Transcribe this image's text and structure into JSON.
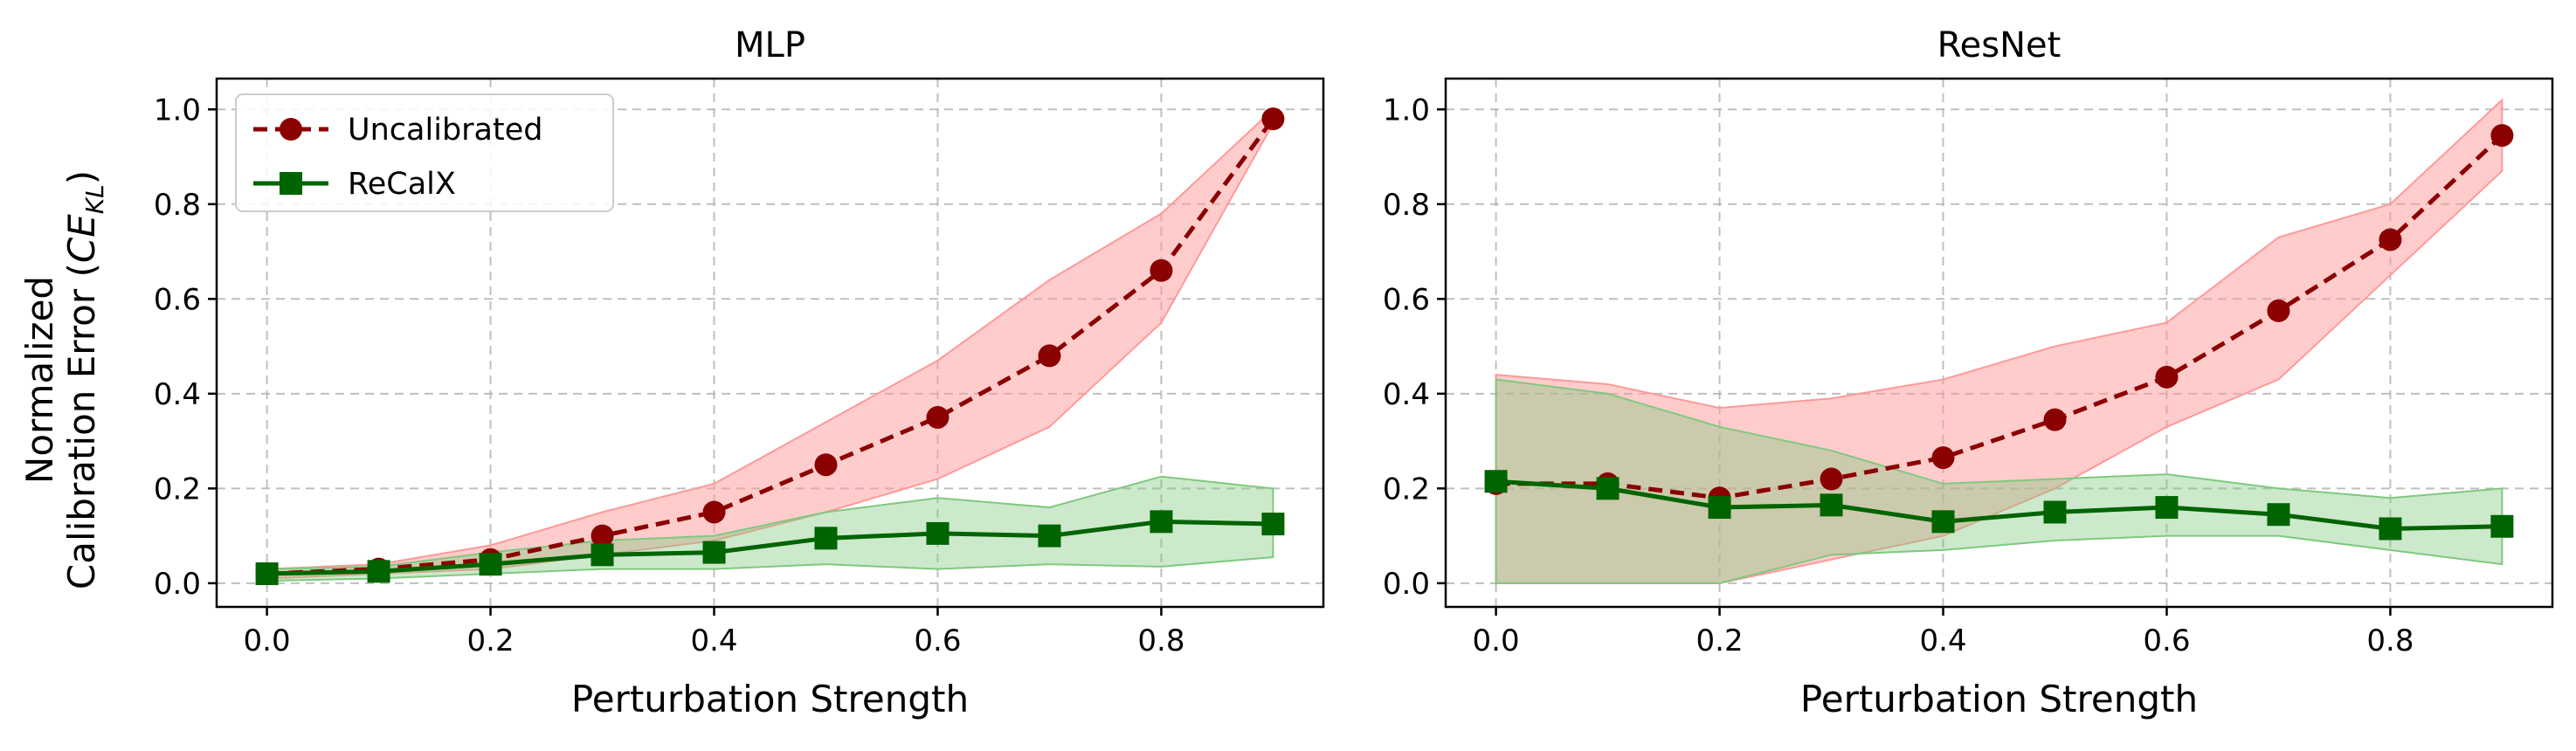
{
  "figure": {
    "ylabel_line1": "Normalized",
    "ylabel_line2": "Calibration Error (",
    "ylabel_ce": "CE",
    "ylabel_sub": "KL",
    "ylabel_close": ")"
  },
  "legend": {
    "placement": "upper-left of first panel",
    "items": [
      {
        "label": "Uncalibrated",
        "color": "#8b0000",
        "marker": "circle",
        "line": "dashed"
      },
      {
        "label": "ReCalX",
        "color": "#006400",
        "marker": "square",
        "line": "solid"
      }
    ]
  },
  "colors": {
    "uncal_line": "#8b0000",
    "uncal_band": "#ff9999",
    "recal_line": "#006400",
    "recal_band": "#7fc97f",
    "grid": "#b0b0b0"
  },
  "chart_data": [
    {
      "type": "line",
      "title": "MLP",
      "xlabel": "Perturbation Strength",
      "xlim": [
        -0.045,
        0.945
      ],
      "ylim": [
        -0.05,
        1.065
      ],
      "xticks": [
        0.0,
        0.2,
        0.4,
        0.6,
        0.8
      ],
      "xtick_labels": [
        "0.0",
        "0.2",
        "0.4",
        "0.6",
        "0.8"
      ],
      "yticks": [
        0.0,
        0.2,
        0.4,
        0.6,
        0.8,
        1.0
      ],
      "ytick_labels": [
        "0.0",
        "0.2",
        "0.4",
        "0.6",
        "0.8",
        "1.0"
      ],
      "grid": true,
      "x": [
        0.0,
        0.1,
        0.2,
        0.3,
        0.4,
        0.5,
        0.6,
        0.7,
        0.8,
        0.9
      ],
      "series": [
        {
          "name": "Uncalibrated",
          "values": [
            0.02,
            0.03,
            0.05,
            0.1,
            0.15,
            0.25,
            0.35,
            0.48,
            0.66,
            0.98
          ],
          "lower": [
            0.01,
            0.02,
            0.03,
            0.06,
            0.09,
            0.15,
            0.22,
            0.33,
            0.55,
            0.97
          ],
          "upper": [
            0.03,
            0.04,
            0.08,
            0.15,
            0.21,
            0.34,
            0.47,
            0.64,
            0.78,
            1.0
          ]
        },
        {
          "name": "ReCalX",
          "values": [
            0.02,
            0.025,
            0.04,
            0.06,
            0.065,
            0.095,
            0.105,
            0.1,
            0.13,
            0.125
          ],
          "lower": [
            0.005,
            0.01,
            0.02,
            0.03,
            0.03,
            0.04,
            0.03,
            0.04,
            0.035,
            0.055
          ],
          "upper": [
            0.03,
            0.035,
            0.065,
            0.09,
            0.1,
            0.15,
            0.18,
            0.16,
            0.225,
            0.2
          ]
        }
      ]
    },
    {
      "type": "line",
      "title": "ResNet",
      "xlabel": "Perturbation Strength",
      "xlim": [
        -0.045,
        0.945
      ],
      "ylim": [
        -0.05,
        1.065
      ],
      "xticks": [
        0.0,
        0.2,
        0.4,
        0.6,
        0.8
      ],
      "xtick_labels": [
        "0.0",
        "0.2",
        "0.4",
        "0.6",
        "0.8"
      ],
      "yticks": [
        0.0,
        0.2,
        0.4,
        0.6,
        0.8,
        1.0
      ],
      "ytick_labels": [
        "0.0",
        "0.2",
        "0.4",
        "0.6",
        "0.8",
        "1.0"
      ],
      "grid": true,
      "x": [
        0.0,
        0.1,
        0.2,
        0.3,
        0.4,
        0.5,
        0.6,
        0.7,
        0.8,
        0.9
      ],
      "series": [
        {
          "name": "Uncalibrated",
          "values": [
            0.21,
            0.21,
            0.18,
            0.22,
            0.265,
            0.345,
            0.435,
            0.575,
            0.725,
            0.945
          ],
          "lower": [
            0.0,
            0.0,
            0.0,
            0.05,
            0.1,
            0.2,
            0.33,
            0.43,
            0.65,
            0.87
          ],
          "upper": [
            0.44,
            0.42,
            0.37,
            0.39,
            0.43,
            0.5,
            0.55,
            0.73,
            0.8,
            1.02
          ]
        },
        {
          "name": "ReCalX",
          "values": [
            0.215,
            0.2,
            0.16,
            0.165,
            0.13,
            0.15,
            0.16,
            0.145,
            0.115,
            0.12
          ],
          "lower": [
            0.0,
            0.0,
            0.0,
            0.06,
            0.07,
            0.09,
            0.1,
            0.1,
            0.07,
            0.04
          ],
          "upper": [
            0.43,
            0.4,
            0.33,
            0.28,
            0.21,
            0.22,
            0.23,
            0.2,
            0.18,
            0.2
          ]
        }
      ]
    }
  ]
}
